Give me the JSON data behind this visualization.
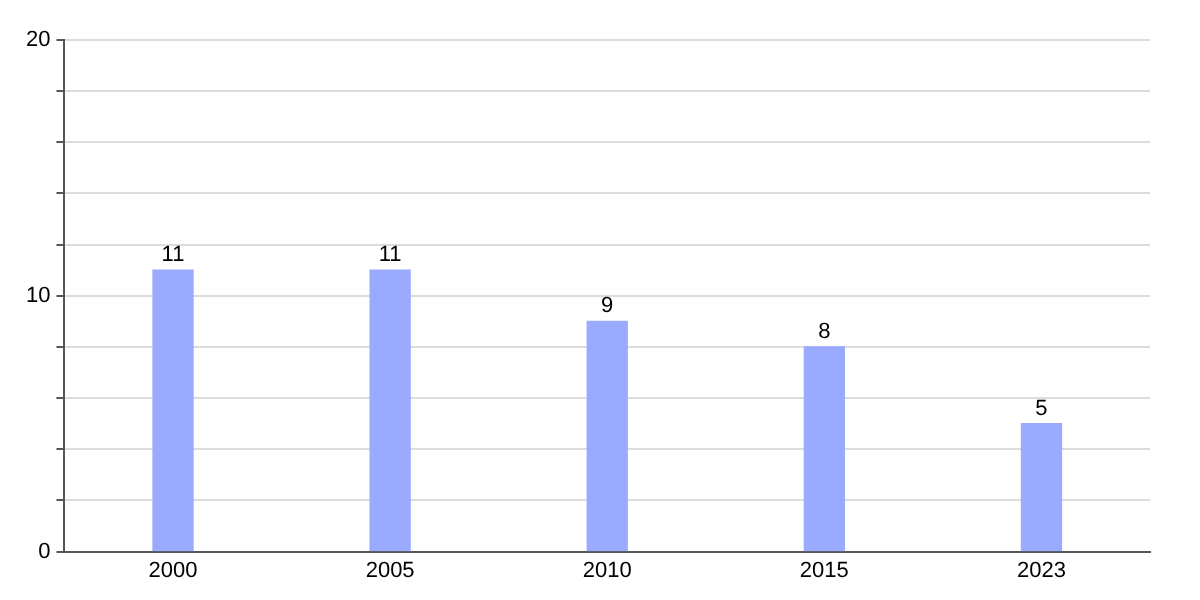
{
  "chart_data": {
    "type": "bar",
    "categories": [
      "2000",
      "2005",
      "2010",
      "2015",
      "2023"
    ],
    "values": [
      11,
      11,
      9,
      8,
      5
    ],
    "color": "#99aaff",
    "ylim": [
      0,
      20
    ],
    "yticks": [
      0,
      {
        "value": 2,
        "label": null
      },
      {
        "value": 4,
        "label": null
      },
      {
        "value": 6,
        "label": null
      },
      {
        "value": 8,
        "label": null
      },
      10,
      {
        "value": 12,
        "label": null
      },
      {
        "value": 14,
        "label": null
      },
      {
        "value": 16,
        "label": null
      },
      {
        "value": 18,
        "label": null
      },
      20
    ],
    "grid": "y",
    "data_labels": true,
    "legend": false
  }
}
